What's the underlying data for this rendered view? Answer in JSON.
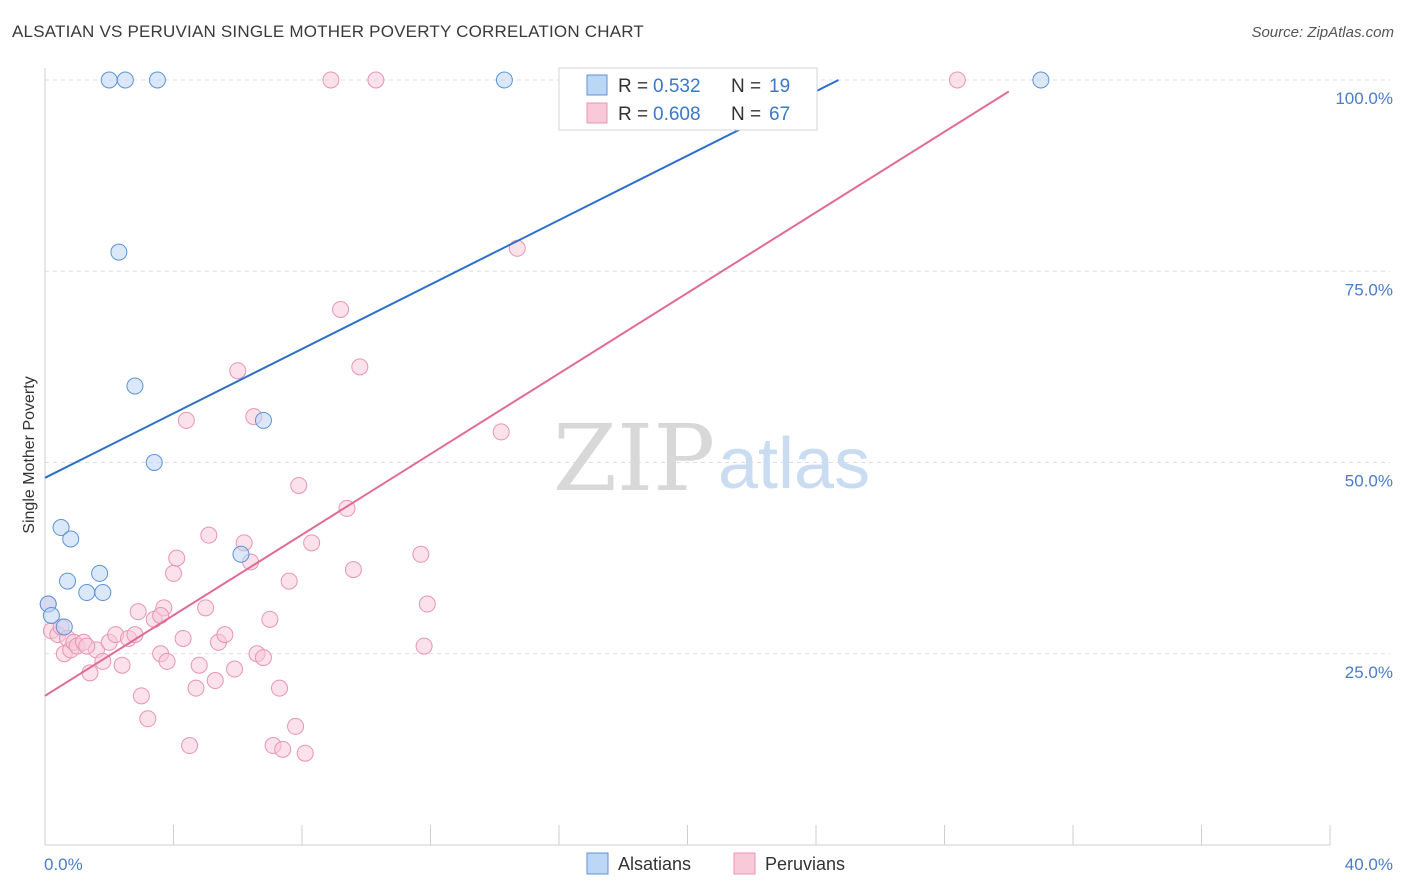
{
  "header": {
    "title": "ALSATIAN VS PERUVIAN SINGLE MOTHER POVERTY CORRELATION CHART",
    "source": "Source: ZipAtlas.com"
  },
  "watermark": {
    "zip": "ZIP",
    "atlas": "atlas"
  },
  "legend": {
    "rows": [
      {
        "r_label": "R = ",
        "r_value": "0.532",
        "n_label": "N = ",
        "n_value": "19",
        "color": "#8fb9ea"
      },
      {
        "r_label": "R = ",
        "r_value": "0.608",
        "n_label": "N = ",
        "n_value": "67",
        "color": "#f2a6c0"
      }
    ]
  },
  "colors": {
    "alsatian_fill": "#bcd6f5",
    "alsatian_stroke": "#5c93d9",
    "alsatian_line": "#2b6fcd",
    "peruvian_fill": "#f8c9d8",
    "peruvian_stroke": "#e895b2",
    "peruvian_line": "#e06b96",
    "tick_text": "#4a7cc9",
    "grid": "#dddddd"
  },
  "chart_data": {
    "type": "scatter",
    "title": "ALSATIAN VS PERUVIAN SINGLE MOTHER POVERTY CORRELATION CHART",
    "xlabel": "",
    "ylabel": "Single Mother Poverty",
    "xlim": [
      0,
      40
    ],
    "ylim": [
      0,
      102
    ],
    "x_tick_labels": [
      "0.0%",
      "40.0%"
    ],
    "y_ticks": [
      25,
      50,
      75,
      100
    ],
    "y_tick_labels": [
      "25.0%",
      "50.0%",
      "75.0%",
      "100.0%"
    ],
    "grid": "horizontal dashed",
    "legend_placement": "top-center",
    "series": [
      {
        "name": "Alsatians",
        "points": [
          [
            0.1,
            31.5
          ],
          [
            0.2,
            30.0
          ],
          [
            0.5,
            41.5
          ],
          [
            0.6,
            28.5
          ],
          [
            0.7,
            34.5
          ],
          [
            0.8,
            40.0
          ],
          [
            1.7,
            35.5
          ],
          [
            1.3,
            33.0
          ],
          [
            1.8,
            33.0
          ],
          [
            2.0,
            100
          ],
          [
            2.5,
            100
          ],
          [
            3.5,
            100
          ],
          [
            2.3,
            77.5
          ],
          [
            2.8,
            60.0
          ],
          [
            3.4,
            50.0
          ],
          [
            6.1,
            38.0
          ],
          [
            6.8,
            55.5
          ],
          [
            14.3,
            100
          ],
          [
            31.0,
            100
          ]
        ],
        "trend": [
          [
            0,
            48.0
          ],
          [
            24.7,
            100
          ]
        ]
      },
      {
        "name": "Peruvians",
        "points": [
          [
            0.1,
            31.5
          ],
          [
            0.2,
            28.0
          ],
          [
            0.4,
            27.5
          ],
          [
            0.5,
            28.5
          ],
          [
            0.6,
            25.0
          ],
          [
            0.7,
            27.0
          ],
          [
            0.8,
            25.5
          ],
          [
            0.9,
            26.5
          ],
          [
            1.0,
            26.0
          ],
          [
            1.2,
            26.5
          ],
          [
            1.4,
            22.5
          ],
          [
            1.6,
            25.5
          ],
          [
            1.8,
            24.0
          ],
          [
            2.0,
            26.5
          ],
          [
            2.2,
            27.5
          ],
          [
            2.4,
            23.5
          ],
          [
            2.6,
            27.0
          ],
          [
            2.8,
            27.5
          ],
          [
            3.0,
            19.5
          ],
          [
            3.2,
            16.5
          ],
          [
            3.4,
            29.5
          ],
          [
            3.6,
            25.0
          ],
          [
            3.8,
            24.0
          ],
          [
            3.7,
            31.0
          ],
          [
            4.0,
            35.5
          ],
          [
            4.1,
            37.5
          ],
          [
            4.3,
            27.0
          ],
          [
            4.4,
            55.5
          ],
          [
            4.5,
            13.0
          ],
          [
            4.7,
            20.5
          ],
          [
            4.8,
            23.5
          ],
          [
            5.0,
            31.0
          ],
          [
            5.1,
            40.5
          ],
          [
            5.3,
            21.5
          ],
          [
            5.4,
            26.5
          ],
          [
            5.6,
            27.5
          ],
          [
            5.9,
            23.0
          ],
          [
            6.0,
            62.0
          ],
          [
            6.2,
            39.5
          ],
          [
            6.4,
            37.0
          ],
          [
            6.5,
            56.0
          ],
          [
            6.6,
            25.0
          ],
          [
            6.8,
            24.5
          ],
          [
            7.0,
            29.5
          ],
          [
            7.1,
            13.0
          ],
          [
            7.3,
            20.5
          ],
          [
            7.4,
            12.5
          ],
          [
            7.6,
            34.5
          ],
          [
            7.8,
            15.5
          ],
          [
            7.9,
            47.0
          ],
          [
            8.1,
            12.0
          ],
          [
            8.3,
            39.5
          ],
          [
            9.2,
            70.0
          ],
          [
            9.4,
            44.0
          ],
          [
            9.6,
            36.0
          ],
          [
            9.8,
            62.5
          ],
          [
            11.7,
            38.0
          ],
          [
            11.9,
            31.5
          ],
          [
            11.8,
            26.0
          ],
          [
            14.2,
            54.0
          ],
          [
            14.7,
            78.0
          ],
          [
            8.9,
            100
          ],
          [
            10.3,
            100
          ],
          [
            28.4,
            100
          ],
          [
            3.6,
            30.0
          ],
          [
            1.3,
            26.0
          ],
          [
            2.9,
            30.5
          ]
        ],
        "trend": [
          [
            0,
            19.5
          ],
          [
            30.0,
            98.5
          ]
        ]
      }
    ]
  }
}
